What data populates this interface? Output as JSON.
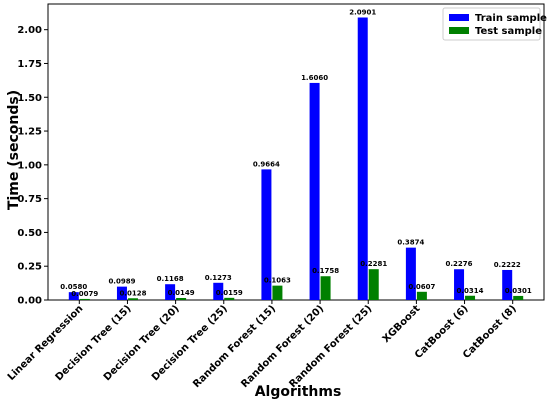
{
  "chart_data": {
    "type": "bar",
    "categories": [
      "Linear Regression",
      "Decision Tree (15)",
      "Decision Tree (20)",
      "Decision Tree (25)",
      "Random Forest (15)",
      "Random Forest (20)",
      "Random Forest (25)",
      "XGBoost",
      "CatBoost (6)",
      "CatBoost (8)"
    ],
    "series": [
      {
        "name": "Train sample",
        "color": "#0000ff",
        "values": [
          0.058,
          0.0989,
          0.1168,
          0.1273,
          0.9664,
          1.606,
          2.0901,
          0.3874,
          0.2276,
          0.2222
        ],
        "labels": [
          "0.0580",
          "0.0989",
          "0.1168",
          "0.1273",
          "0.9664",
          "1.6060",
          "2.0901",
          "0.3874",
          "0.2276",
          "0.2222"
        ]
      },
      {
        "name": "Test sample",
        "color": "#008000",
        "values": [
          0.0079,
          0.0128,
          0.0149,
          0.0159,
          0.1063,
          0.1758,
          0.2281,
          0.0607,
          0.0314,
          0.0301
        ],
        "labels": [
          "0.0079",
          "0.0128",
          "0.0149",
          "0.0159",
          "0.1063",
          "0.1758",
          "0.2281",
          "0.0607",
          "0.0314",
          "0.0301"
        ]
      }
    ],
    "xlabel": "Algorithms",
    "ylabel": "Time (seconds)",
    "ylim": [
      0,
      2.19
    ],
    "yticks": [
      "0.00",
      "0.25",
      "0.50",
      "0.75",
      "1.00",
      "1.25",
      "1.50",
      "1.75",
      "2.00"
    ],
    "legend_position": "top-right",
    "grid": false
  }
}
